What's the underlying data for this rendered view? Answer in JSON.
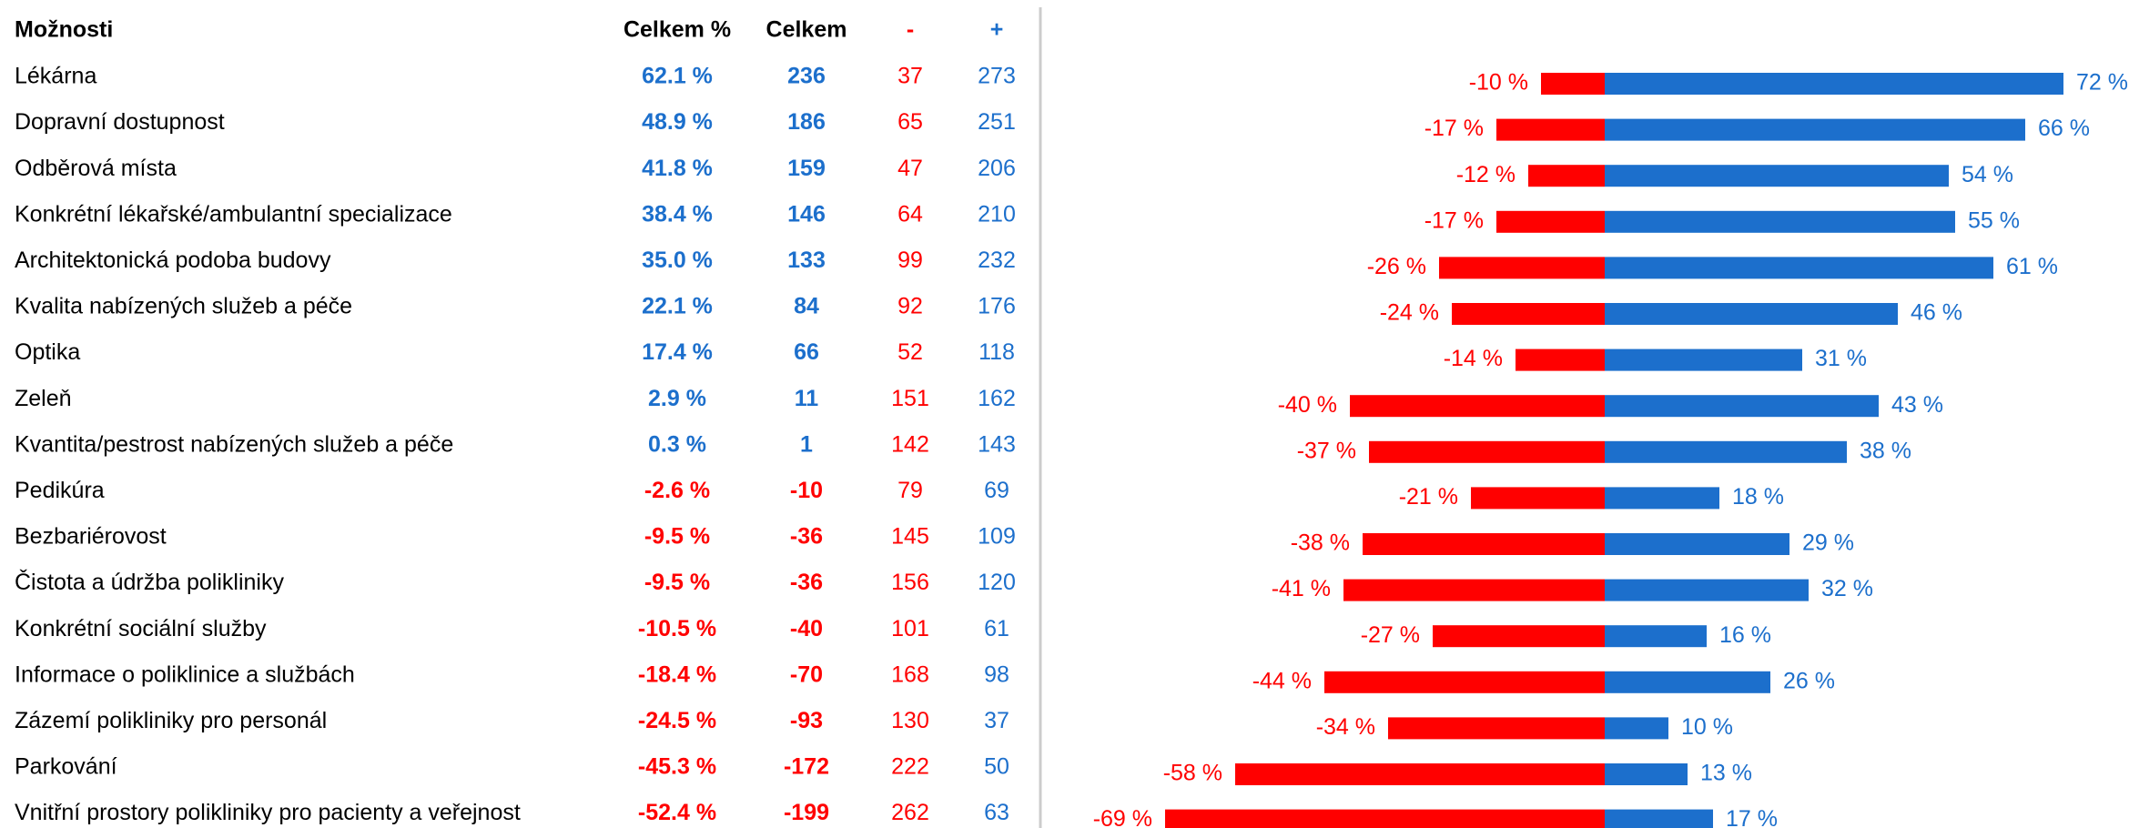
{
  "table": {
    "header": [
      "Možnosti",
      "Celkem %",
      "Celkem",
      "-",
      "+"
    ],
    "rows": [
      [
        "Lékárna",
        "62.1 %",
        "236",
        "37",
        "273"
      ],
      [
        "Dopravní dostupnost",
        "48.9 %",
        "186",
        "65",
        "251"
      ],
      [
        "Odběrová místa",
        "41.8 %",
        "159",
        "47",
        "206"
      ],
      [
        "Konkrétní lékařské/ambulantní specializace",
        "38.4 %",
        "146",
        "64",
        "210"
      ],
      [
        "Architektonická podoba budovy",
        "35.0 %",
        "133",
        "99",
        "232"
      ],
      [
        "Kvalita nabízených služeb a péče",
        "22.1 %",
        "84",
        "92",
        "176"
      ],
      [
        "Optika",
        "17.4 %",
        "66",
        "52",
        "118"
      ],
      [
        "Zeleň",
        "2.9 %",
        "11",
        "151",
        "162"
      ],
      [
        "Kvantita/pestrost nabízených služeb a péče",
        "0.3 %",
        "1",
        "142",
        "143"
      ],
      [
        "Pedikúra",
        "-2.6 %",
        "-10",
        "79",
        "69"
      ],
      [
        "Bezbariérovost",
        "-9.5 %",
        "-36",
        "145",
        "109"
      ],
      [
        "Čistota a údržba polikliniky",
        "-9.5 %",
        "-36",
        "156",
        "120"
      ],
      [
        "Konkrétní sociální služby",
        "-10.5 %",
        "-40",
        "101",
        "61"
      ],
      [
        "Informace o poliklinice a službách",
        "-18.4 %",
        "-70",
        "168",
        "98"
      ],
      [
        "Zázemí polikliniky pro personál",
        "-24.5 %",
        "-93",
        "130",
        "37"
      ],
      [
        "Parkování",
        "-45.3 %",
        "-172",
        "222",
        "50"
      ],
      [
        "Vnitřní prostory polikliniky pro pacienty a veřejnost",
        "-52.4 %",
        "-199",
        "262",
        "63"
      ]
    ]
  },
  "bars": {
    "negative": [
      -10,
      -17,
      -12,
      -17,
      -26,
      -24,
      -14,
      -40,
      -37,
      -21,
      -38,
      -41,
      -27,
      -44,
      -34,
      -58,
      -69
    ],
    "negative_labels": [
      "-10 %",
      "-17 %",
      "-12 %",
      "-17 %",
      "-26 %",
      "-24 %",
      "-14 %",
      "-40 %",
      "-37 %",
      "-21 %",
      "-38 %",
      "-41 %",
      "-27 %",
      "-44 %",
      "-34 %",
      "-58 %",
      "-69 %"
    ],
    "positive": [
      72,
      66,
      54,
      55,
      61,
      46,
      31,
      43,
      38,
      18,
      29,
      32,
      16,
      26,
      10,
      13,
      17
    ],
    "positive_labels": [
      "72 %",
      "66 %",
      "54 %",
      "55 %",
      "61 %",
      "46 %",
      "31 %",
      "43 %",
      "38 %",
      "18 %",
      "29 %",
      "32 %",
      "16 %",
      "26 %",
      "10 %",
      "13 %",
      "17 %"
    ],
    "negative_color": "#ff0000",
    "positive_color": "#1c6fcc"
  }
}
